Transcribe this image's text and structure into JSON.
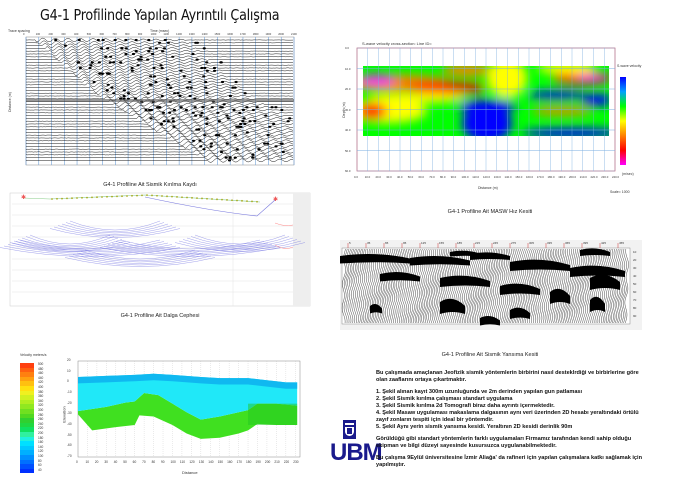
{
  "title": "G4-1 Profilinde Yapılan Ayrıntılı Çalışma",
  "seismic_record": {
    "caption": "G4-1 Profiline Ait Sismik Kırılma Kaydı",
    "top_left_label": "Trace spacing",
    "x_axis_label": "Time (msec)",
    "y_axis_label": "Distance (m)",
    "x_ticks": [
      "0",
      "100",
      "200",
      "300",
      "400",
      "500",
      "600",
      "700",
      "800",
      "900",
      "1000",
      "1100",
      "1200",
      "1300",
      "1400",
      "1500",
      "1600",
      "1700",
      "1800",
      "1900",
      "2000",
      "2100"
    ]
  },
  "wavefront": {
    "caption": "G4-1 Profiline Ait Dalga Cephesi"
  },
  "masw": {
    "caption": "G4-1 Profiline Ait MASW Hız Kesiti",
    "plot_title": "S-wave velocity cross-section: Line ID=",
    "x_axis_label": "Distance (m)",
    "y_axis_label": "Depth (m)",
    "colorbar_title": "S-wave velocity",
    "colorbar_unit": "(m/sec)",
    "scale_label": "Scale= 1000",
    "x_ticks": [
      "0.0",
      "10.0",
      "20.0",
      "30.0",
      "40.0",
      "50.0",
      "60.0",
      "70.0",
      "80.0",
      "90.0",
      "100.0",
      "110.0",
      "120.0",
      "130.0",
      "140.0",
      "150.0",
      "160.0",
      "170.0",
      "180.0",
      "190.0",
      "200.0",
      "210.0",
      "220.0",
      "230.0",
      "240.0"
    ],
    "y_ticks": [
      "0.0",
      "10.0",
      "20.0",
      "30.0",
      "40.0",
      "50.0",
      "60.0"
    ],
    "colors": [
      "#0000ff",
      "#00a0ff",
      "#00ff00",
      "#ffff00",
      "#ff8000",
      "#ff0000",
      "#ff00ff"
    ]
  },
  "reflection": {
    "caption": "G4-1 Profiline Ait Sismik Yansıma Kesiti",
    "top_ticks": [
      "5",
      "35",
      "65",
      "95",
      "125",
      "155",
      "185",
      "215",
      "245",
      "275",
      "305",
      "335",
      "365",
      "395",
      "425",
      "455"
    ],
    "right_ticks": [
      "10",
      "20",
      "30",
      "40",
      "50",
      "60",
      "70",
      "80",
      "90"
    ]
  },
  "tomography": {
    "legend_title": "Velocity meters/s",
    "legend_values": [
      "500",
      "480",
      "460",
      "440",
      "420",
      "400",
      "380",
      "360",
      "340",
      "320",
      "300",
      "280",
      "260",
      "240",
      "220",
      "200",
      "180",
      "160",
      "140",
      "120",
      "100",
      "80",
      "60",
      "40"
    ],
    "legend_colors": [
      "#ff4010",
      "#ff6010",
      "#ff8010",
      "#ffa010",
      "#ffc010",
      "#ffe010",
      "#f0f020",
      "#d0f020",
      "#b0ee20",
      "#90e820",
      "#70e020",
      "#50d820",
      "#30d030",
      "#20d840",
      "#10e060",
      "#30f0a0",
      "#20f0e0",
      "#00e0ff",
      "#00c8ff",
      "#00b0ff",
      "#0090ff",
      "#0070ff",
      "#0050ff",
      "#0030ff"
    ],
    "x_axis_label": "Distance",
    "y_axis_label": "Elevation",
    "x_ticks": [
      "0",
      "10",
      "20",
      "30",
      "40",
      "50",
      "60",
      "70",
      "80",
      "90",
      "100",
      "110",
      "120",
      "130",
      "140",
      "150",
      "160",
      "170",
      "180",
      "190",
      "200",
      "210",
      "220",
      "230"
    ],
    "y_ticks": [
      "20",
      "10",
      "0",
      "-10",
      "-20",
      "-30",
      "-40",
      "-50",
      "-60",
      "-70"
    ]
  },
  "logo": {
    "text": "UBM",
    "color": "#1a1a8c"
  },
  "description": {
    "intro": "Bu çalışmada amaçlanan Jeofizik sismik yöntemlerin birbirini nasıl desteklrdiği ve birbirlerine göre olan zaaflarını ortaya çıkartmaktır.",
    "items": [
      "1. Şekil alınan kayıt 300m uzunluğunda ve 2m derinden yapılan gun patlaması",
      "2. Şekil Sismik kırılma çalışması standart uygulama",
      "3. Şekil Sismik kırılma 2d Tomografi biraz daha ayrıntı içermektedir.",
      "4. Şekil Masaw uygulaması makaslama dalgasının aynı veri üzerinden 2D hesabı yeraltındaki örtülü zayıf zonların tespiti için ideal bir yöntemdir.",
      "5. Şekil Aynı yerin sismik yansıma kesidi. Yeraltının 2D kesidi derinlik 90m"
    ],
    "para2": "Görüldüğü gibi standart yöntemlerin farklı uygulamaları Firmamız tarafından kendi sahip olduğu ekipman ve bilgi düzeyi sayesinde kusursuzca uygulanabilmektedir.",
    "para3": "Bu çalışma 9Eylül üniversitesine İzmir Aliağa' da rafineri için yapılan çalışmalara katkı sağlamak için yapılmıştır."
  }
}
